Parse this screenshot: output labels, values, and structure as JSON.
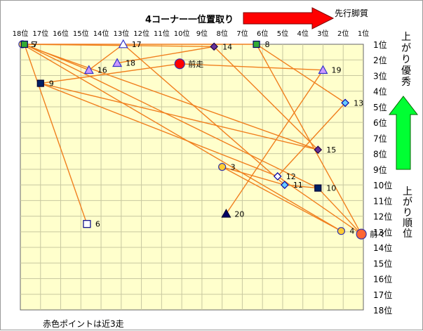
{
  "chart_data": {
    "type": "scatter",
    "title": "4コーナー一位置取り",
    "x_axis": {
      "range": [
        18,
        1
      ],
      "tick_labels": [
        "18位",
        "17位",
        "16位",
        "15位",
        "14位",
        "13位",
        "12位",
        "11位",
        "10位",
        "9位",
        "8位",
        "7位",
        "6位",
        "5位",
        "4位",
        "3位",
        "2位",
        "1位"
      ]
    },
    "y_axis": {
      "range": [
        1,
        18
      ],
      "tick_labels": [
        "1位",
        "2位",
        "3位",
        "4位",
        "5位",
        "6位",
        "7位",
        "8位",
        "9位",
        "10位",
        "11位",
        "12位",
        "13位",
        "14位",
        "15位",
        "16位",
        "17位",
        "18位"
      ]
    },
    "grid": true,
    "colors": {
      "plot_bg": "#ffffcc",
      "grid": "#c8c8a0",
      "line": "#f07f1e",
      "red_arrow": "#ff0000",
      "green_arrow": "#00ff33"
    },
    "annotations": {
      "top_right": "先行脚質",
      "right_top": "上がり優秀",
      "right_bottom": "上がり順位",
      "bottom_left": "赤色ポイントは近3走"
    },
    "points": [
      {
        "label": "5",
        "x": 17.9,
        "y": 1,
        "marker": "circle-orange"
      },
      {
        "label": "7",
        "x": 17.8,
        "y": 1,
        "marker": "square-green"
      },
      {
        "label": "17",
        "x": 12.9,
        "y": 1,
        "marker": "triangle-white"
      },
      {
        "label": "14",
        "x": 8.4,
        "y": 1.15,
        "marker": "diamond-purple"
      },
      {
        "label": "8",
        "x": 6.3,
        "y": 1,
        "marker": "square-green"
      },
      {
        "label": "18",
        "x": 13.2,
        "y": 2.2,
        "marker": "triangle-lilac"
      },
      {
        "label": "前走",
        "x": 10.1,
        "y": 2.25,
        "marker": "circle-red"
      },
      {
        "label": "16",
        "x": 14.6,
        "y": 2.65,
        "marker": "triangle-lilac"
      },
      {
        "label": "19",
        "x": 3.0,
        "y": 2.65,
        "marker": "triangle-lilac"
      },
      {
        "label": "9",
        "x": 17.0,
        "y": 3.5,
        "marker": "square-navy"
      },
      {
        "label": "13",
        "x": 1.9,
        "y": 4.75,
        "marker": "diamond-lightblue"
      },
      {
        "label": "15",
        "x": 3.25,
        "y": 7.75,
        "marker": "diamond-purple"
      },
      {
        "label": "3",
        "x": 8.0,
        "y": 8.85,
        "marker": "circle-orange"
      },
      {
        "label": "12",
        "x": 5.25,
        "y": 9.45,
        "marker": "diamond-white"
      },
      {
        "label": "11",
        "x": 4.9,
        "y": 10.0,
        "marker": "diamond-lightblue"
      },
      {
        "label": "10",
        "x": 3.25,
        "y": 10.2,
        "marker": "square-navy"
      },
      {
        "label": "20",
        "x": 7.8,
        "y": 11.85,
        "marker": "triangle-navy"
      },
      {
        "label": "6",
        "x": 14.7,
        "y": 12.5,
        "marker": "square-white"
      },
      {
        "label": "4",
        "x": 2.1,
        "y": 12.95,
        "marker": "circle-orange"
      },
      {
        "label": "前々",
        "x": 1.1,
        "y": 13.15,
        "marker": "circle-orange-big"
      }
    ],
    "lines": [
      [
        17.8,
        1,
        6.3,
        1
      ],
      [
        17.8,
        1,
        14.6,
        2.65
      ],
      [
        17.8,
        1,
        3.25,
        10.2
      ],
      [
        17.8,
        1,
        14.7,
        12.5
      ],
      [
        17.9,
        1,
        8.4,
        1.15
      ],
      [
        17.9,
        1,
        2.1,
        12.95
      ],
      [
        17.9,
        1,
        3.25,
        7.75
      ],
      [
        14.6,
        2.65,
        12.9,
        1
      ],
      [
        13.2,
        2.2,
        8.4,
        1.15
      ],
      [
        8.4,
        1.15,
        3.25,
        7.75
      ],
      [
        10.1,
        2.25,
        3.0,
        2.65
      ],
      [
        10.1,
        2.25,
        17.0,
        3.5
      ],
      [
        6.3,
        1,
        1.9,
        4.75
      ],
      [
        6.3,
        1,
        1.1,
        13.15
      ],
      [
        17.0,
        3.5,
        3.25,
        7.75
      ],
      [
        17.0,
        3.5,
        5.25,
        9.45
      ],
      [
        1.9,
        4.75,
        5.25,
        9.45
      ],
      [
        8.0,
        8.85,
        2.1,
        12.95
      ],
      [
        8.0,
        8.85,
        4.9,
        10.0
      ],
      [
        4.9,
        10.0,
        3.25,
        10.2
      ],
      [
        3.25,
        10.2,
        1.1,
        13.15
      ],
      [
        5.25,
        9.45,
        1.1,
        13.15
      ],
      [
        7.8,
        11.85,
        3.0,
        2.65
      ],
      [
        12.9,
        1,
        4.9,
        10.0
      ]
    ]
  }
}
